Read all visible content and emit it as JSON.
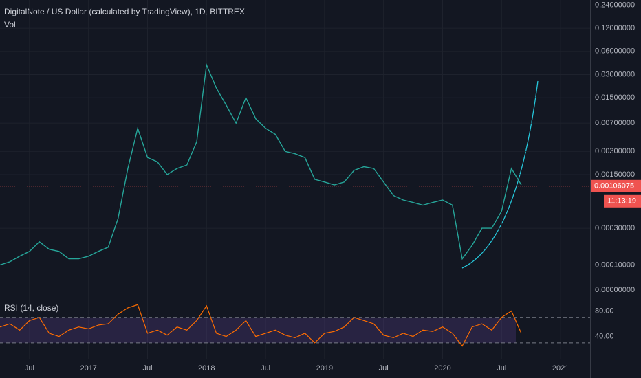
{
  "chart_data": [
    {
      "type": "line",
      "title": "DigitalNote / US Dollar (calculated by TradingView), 1D, BITTREX",
      "subtitle": "Vol",
      "x": [
        "2016-04",
        "2016-05",
        "2016-06",
        "2016-07",
        "2016-08",
        "2016-09",
        "2016-10",
        "2016-11",
        "2016-12",
        "2017-01",
        "2017-02",
        "2017-03",
        "2017-04",
        "2017-05",
        "2017-06",
        "2017-07",
        "2017-08",
        "2017-09",
        "2017-10",
        "2017-11",
        "2017-12",
        "2018-01",
        "2018-02",
        "2018-03",
        "2018-04",
        "2018-05",
        "2018-06",
        "2018-07",
        "2018-08",
        "2018-09",
        "2018-10",
        "2018-11",
        "2018-12",
        "2019-01",
        "2019-02",
        "2019-03",
        "2019-04",
        "2019-05",
        "2019-06",
        "2019-07",
        "2019-08",
        "2019-09",
        "2019-10",
        "2019-11",
        "2019-12",
        "2020-01",
        "2020-02",
        "2020-03",
        "2020-04",
        "2020-05",
        "2020-06",
        "2020-07",
        "2020-08",
        "2020-09"
      ],
      "values": [
        0.0001,
        0.00011,
        0.00013,
        0.00015,
        0.0002,
        0.00016,
        0.00015,
        0.00012,
        0.00012,
        0.00013,
        0.00015,
        0.00017,
        0.0004,
        0.0018,
        0.006,
        0.0025,
        0.0022,
        0.0015,
        0.0018,
        0.002,
        0.004,
        0.04,
        0.02,
        0.012,
        0.007,
        0.015,
        0.008,
        0.006,
        0.005,
        0.003,
        0.0028,
        0.0025,
        0.0013,
        0.0012,
        0.0011,
        0.0012,
        0.0017,
        0.0019,
        0.0018,
        0.0012,
        0.0008,
        0.0007,
        0.00065,
        0.0006,
        0.00065,
        0.0007,
        0.0006,
        0.00012,
        0.00018,
        0.0003,
        0.0003,
        0.0005,
        0.0018,
        0.0011
      ],
      "color": "#26a69a",
      "log_scale": true,
      "ylim": [
        4e-05,
        0.28
      ],
      "yticks": [
        {
          "value": 0.24,
          "label": "0.24000000"
        },
        {
          "value": 0.12,
          "label": "0.12000000"
        },
        {
          "value": 0.06,
          "label": "0.06000000"
        },
        {
          "value": 0.03,
          "label": "0.03000000"
        },
        {
          "value": 0.015,
          "label": "0.01500000"
        },
        {
          "value": 0.007,
          "label": "0.00700000"
        },
        {
          "value": 0.003,
          "label": "0.00300000"
        },
        {
          "value": 0.0015,
          "label": "0.00150000"
        },
        {
          "value": 0.0003,
          "label": "0.00030000"
        },
        {
          "value": 0.0001,
          "label": "0.00010000"
        }
      ],
      "volume_ticks": [
        {
          "value": 0,
          "label": "0.00000000"
        }
      ],
      "xlim": [
        "2016-04",
        "2021-04"
      ],
      "xticks": [
        {
          "value": "2016-07",
          "label": "Jul"
        },
        {
          "value": "2017-01",
          "label": "2017"
        },
        {
          "value": "2017-07",
          "label": "Jul"
        },
        {
          "value": "2018-01",
          "label": "2018"
        },
        {
          "value": "2018-07",
          "label": "Jul"
        },
        {
          "value": "2019-01",
          "label": "2019"
        },
        {
          "value": "2019-07",
          "label": "Jul"
        },
        {
          "value": "2020-01",
          "label": "2020"
        },
        {
          "value": "2020-07",
          "label": "Jul"
        },
        {
          "value": "2021-01",
          "label": "2021"
        }
      ],
      "last_price": {
        "value": 0.00106075,
        "label": "0.00106075",
        "color": "#ef5350"
      },
      "countdown": "11:13:19"
    },
    {
      "type": "line",
      "title": "RSI (14, close)",
      "values": [
        55,
        60,
        50,
        65,
        70,
        45,
        40,
        50,
        55,
        52,
        58,
        60,
        75,
        85,
        90,
        45,
        50,
        42,
        55,
        50,
        65,
        88,
        45,
        40,
        50,
        65,
        40,
        45,
        50,
        42,
        38,
        45,
        30,
        45,
        48,
        55,
        70,
        65,
        60,
        42,
        38,
        45,
        40,
        50,
        48,
        55,
        45,
        25,
        55,
        60,
        50,
        70,
        80,
        45
      ],
      "color": "#ff6d00",
      "ylim": [
        5,
        100
      ],
      "yticks": [
        {
          "value": 80,
          "label": "80.00"
        },
        {
          "value": 40,
          "label": "40.00"
        }
      ],
      "bands": [
        30,
        70
      ],
      "band_color": "#7e57c2"
    }
  ]
}
